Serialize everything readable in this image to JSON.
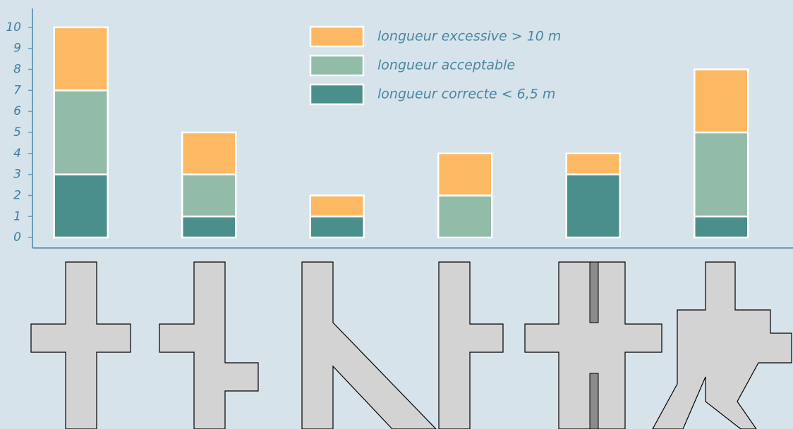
{
  "chart_data": {
    "type": "bar",
    "stacked": true,
    "categories": [
      null,
      null,
      null,
      null,
      null,
      null
    ],
    "series": [
      {
        "name": "longueur correcte < 6,5 m",
        "color": "#4a8f8c",
        "values": [
          3,
          1,
          1,
          0,
          3,
          1
        ]
      },
      {
        "name": "longueur acceptable",
        "color": "#93bca8",
        "values": [
          4,
          2,
          0,
          2,
          0,
          4
        ]
      },
      {
        "name": "longueur excessive > 10 m",
        "color": "#fdb863",
        "values": [
          3,
          2,
          1,
          2,
          1,
          3
        ]
      }
    ],
    "ylim": [
      -0.5,
      10.9
    ],
    "yticks": [
      0,
      1,
      2,
      3,
      4,
      5,
      6,
      7,
      8,
      9,
      10
    ],
    "grid": false,
    "legend": "top"
  }
}
